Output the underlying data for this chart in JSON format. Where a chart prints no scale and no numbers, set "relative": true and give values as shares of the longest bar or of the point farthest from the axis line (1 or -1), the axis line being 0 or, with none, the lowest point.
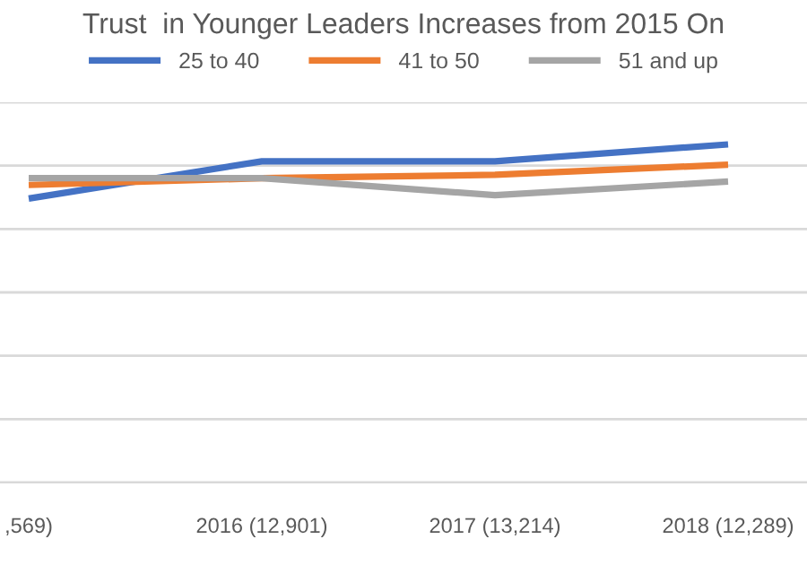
{
  "chart_data": {
    "type": "line",
    "title": "Trust  in Younger Leaders Increases from 2015 On",
    "relative": true,
    "categories": [
      ",569)",
      "2016 (12,901)",
      "2017 (13,214)",
      "2018 (12,289)"
    ],
    "series": [
      {
        "name": "25 to 40",
        "color": "#4472c4",
        "values": [
          0.84,
          0.95,
          0.95,
          1
        ]
      },
      {
        "name": "41 to 50",
        "color": "#ed7d31",
        "values": [
          0.88,
          0.9,
          0.91,
          0.94
        ]
      },
      {
        "name": "51 and up",
        "color": "#a5a5a5",
        "values": [
          0.9,
          0.9,
          0.85,
          0.89
        ]
      }
    ],
    "grid": "y",
    "legend": "top",
    "marker": "none",
    "line_style": "solid"
  }
}
